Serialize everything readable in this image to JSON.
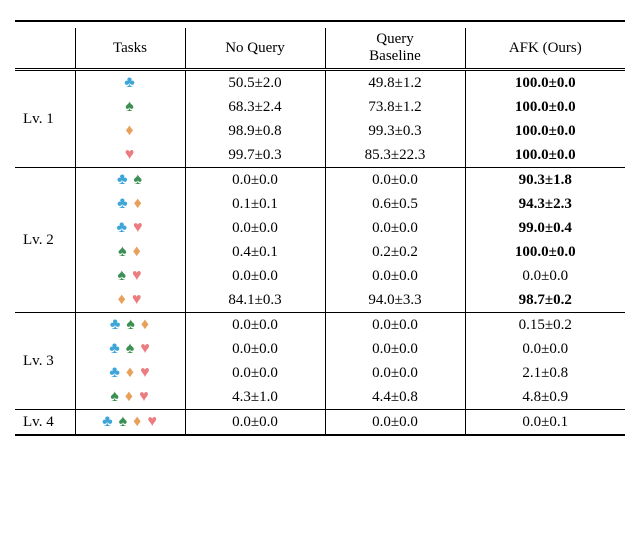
{
  "header": {
    "tasks": "Tasks",
    "no_query": "No Query",
    "query_baseline_l1": "Query",
    "query_baseline_l2": "Baseline",
    "afk": "AFK (Ours)"
  },
  "suits": {
    "club": {
      "glyph": "♣",
      "color": "#3ea5d9"
    },
    "spade": {
      "glyph": "♠",
      "color": "#3c8f52"
    },
    "diamond": {
      "glyph": "♦",
      "color": "#e9a05b"
    },
    "heart": {
      "glyph": "♥",
      "color": "#ec7c80"
    }
  },
  "levels": [
    {
      "label": "Lv. 1",
      "rows": [
        {
          "suits": [
            "club"
          ],
          "nq": "50.5±2.0",
          "qb": "49.8±1.2",
          "afk": "100.0±0.0",
          "afk_bold": true
        },
        {
          "suits": [
            "spade"
          ],
          "nq": "68.3±2.4",
          "qb": "73.8±1.2",
          "afk": "100.0±0.0",
          "afk_bold": true
        },
        {
          "suits": [
            "diamond"
          ],
          "nq": "98.9±0.8",
          "qb": "99.3±0.3",
          "afk": "100.0±0.0",
          "afk_bold": true
        },
        {
          "suits": [
            "heart"
          ],
          "nq": "99.7±0.3",
          "qb": "85.3±22.3",
          "afk": "100.0±0.0",
          "afk_bold": true
        }
      ]
    },
    {
      "label": "Lv. 2",
      "rows": [
        {
          "suits": [
            "club",
            "spade"
          ],
          "nq": "0.0±0.0",
          "qb": "0.0±0.0",
          "afk": "90.3±1.8",
          "afk_bold": true
        },
        {
          "suits": [
            "club",
            "diamond"
          ],
          "nq": "0.1±0.1",
          "qb": "0.6±0.5",
          "afk": "94.3±2.3",
          "afk_bold": true
        },
        {
          "suits": [
            "club",
            "heart"
          ],
          "nq": "0.0±0.0",
          "qb": "0.0±0.0",
          "afk": "99.0±0.4",
          "afk_bold": true
        },
        {
          "suits": [
            "spade",
            "diamond"
          ],
          "nq": "0.4±0.1",
          "qb": "0.2±0.2",
          "afk": "100.0±0.0",
          "afk_bold": true
        },
        {
          "suits": [
            "spade",
            "heart"
          ],
          "nq": "0.0±0.0",
          "qb": "0.0±0.0",
          "afk": "0.0±0.0",
          "afk_bold": false
        },
        {
          "suits": [
            "diamond",
            "heart"
          ],
          "nq": "84.1±0.3",
          "qb": "94.0±3.3",
          "afk": "98.7±0.2",
          "afk_bold": true
        }
      ]
    },
    {
      "label": "Lv. 3",
      "rows": [
        {
          "suits": [
            "club",
            "spade",
            "diamond"
          ],
          "nq": "0.0±0.0",
          "qb": "0.0±0.0",
          "afk": "0.15±0.2",
          "afk_bold": false
        },
        {
          "suits": [
            "club",
            "spade",
            "heart"
          ],
          "nq": "0.0±0.0",
          "qb": "0.0±0.0",
          "afk": "0.0±0.0",
          "afk_bold": false
        },
        {
          "suits": [
            "club",
            "diamond",
            "heart"
          ],
          "nq": "0.0±0.0",
          "qb": "0.0±0.0",
          "afk": "2.1±0.8",
          "afk_bold": false
        },
        {
          "suits": [
            "spade",
            "diamond",
            "heart"
          ],
          "nq": "4.3±1.0",
          "qb": "4.4±0.8",
          "afk": "4.8±0.9",
          "afk_bold": false
        }
      ]
    },
    {
      "label": "Lv. 4",
      "rows": [
        {
          "suits": [
            "club",
            "spade",
            "diamond",
            "heart"
          ],
          "nq": "0.0±0.0",
          "qb": "0.0±0.0",
          "afk": "0.0±0.1",
          "afk_bold": false
        }
      ]
    }
  ]
}
